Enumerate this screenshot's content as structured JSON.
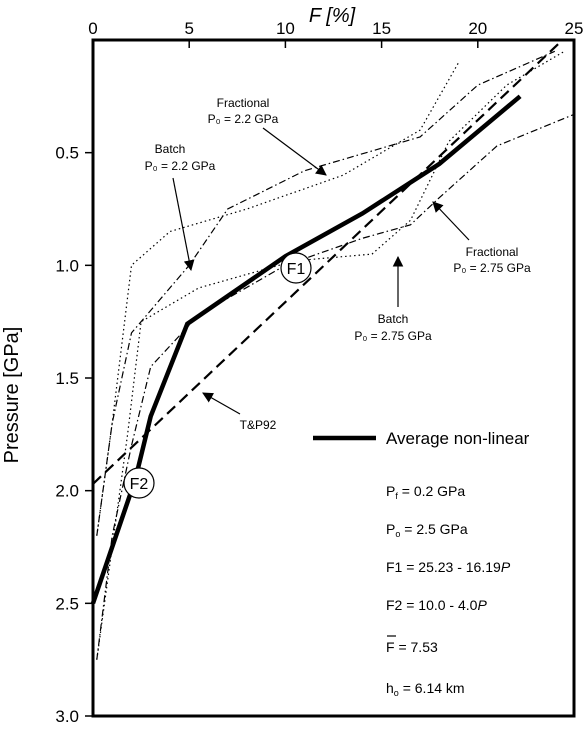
{
  "chart_data": {
    "type": "line",
    "title": "",
    "xlabel": "F [%]",
    "ylabel": "Pressure [GPa]",
    "x_axis_position": "top",
    "y_axis_inverted": true,
    "xlim": [
      0,
      25
    ],
    "ylim": [
      0,
      3.0
    ],
    "x_ticks": [
      "0",
      "5",
      "10",
      "15",
      "20",
      "25"
    ],
    "y_ticks": [
      "0.5",
      "1.0",
      "1.5",
      "2.0",
      "2.5",
      "3.0"
    ],
    "grid": false,
    "series": [
      {
        "name": "Average non-linear",
        "style": "solid-thick",
        "x": [
          0,
          1.0,
          2.2,
          3.0,
          4.9,
          10.0,
          14.0,
          18.0,
          22.2
        ],
        "y": [
          2.5,
          2.25,
          1.95,
          1.67,
          1.26,
          0.96,
          0.77,
          0.55,
          0.25
        ]
      },
      {
        "name": "T&P92",
        "style": "dashed",
        "x": [
          0,
          24.4
        ],
        "y": [
          1.97,
          0.0
        ]
      },
      {
        "name": "Fractional P₀ = 2.2 GPa",
        "style": "dotted",
        "x": [
          0.2,
          1.0,
          2.0,
          4.0,
          8.0,
          13.0,
          17.0,
          19.0
        ],
        "y": [
          2.2,
          1.7,
          1.0,
          0.85,
          0.75,
          0.6,
          0.4,
          0.1
        ]
      },
      {
        "name": "Batch P₀ = 2.2 GPa",
        "style": "dashdot",
        "x": [
          0.2,
          1.0,
          2.0,
          5.0,
          7.0,
          11.0,
          17.0,
          20.0,
          24.0
        ],
        "y": [
          2.2,
          1.7,
          1.3,
          1.0,
          0.75,
          0.58,
          0.43,
          0.2,
          0.05
        ]
      },
      {
        "name": "Fractional P₀ = 2.75 GPa",
        "style": "dashdot",
        "x": [
          0.2,
          1.0,
          2.0,
          3.0,
          5.5,
          10.0,
          14.0,
          16.5,
          18.0,
          21.0,
          25.0
        ],
        "y": [
          2.75,
          2.2,
          1.8,
          1.45,
          1.22,
          1.0,
          0.88,
          0.82,
          0.7,
          0.47,
          0.33
        ]
      },
      {
        "name": "Batch P₀ = 2.75 GPa",
        "style": "dotted",
        "x": [
          0.2,
          1.0,
          1.8,
          2.5,
          5.5,
          10.5,
          14.5,
          16.5,
          18.5,
          21.5,
          24.5
        ],
        "y": [
          2.75,
          2.25,
          1.75,
          1.25,
          1.1,
          0.98,
          0.95,
          0.8,
          0.45,
          0.2,
          0.05
        ]
      }
    ],
    "markers": [
      {
        "label": "F1",
        "x": 10.5,
        "y": 0.93
      },
      {
        "label": "F2",
        "x": 2.3,
        "y": 1.92
      }
    ],
    "annotations": [
      {
        "lines": [
          "Fractional",
          "P₀ = 2.2 GPa"
        ],
        "anchor": "top-center"
      },
      {
        "lines": [
          "Batch",
          "P₀ = 2.2 GPa"
        ],
        "anchor": "upper-left"
      },
      {
        "lines": [
          "Fractional",
          "P₀ = 2.75 GPa"
        ],
        "anchor": "right"
      },
      {
        "lines": [
          "Batch",
          "P₀ = 2.75 GPa"
        ],
        "anchor": "middle-right"
      },
      {
        "lines": [
          "T&P92"
        ],
        "anchor": "middle-left"
      }
    ],
    "legend": {
      "placement": "lower-right",
      "entries": [
        {
          "label": "Average non-linear",
          "style": "solid-thick"
        }
      ]
    },
    "stats": {
      "pf": "P",
      "pf_sub": "f",
      "pf_val": " = 0.2 GPa",
      "po": "P",
      "po_sub": "o",
      "po_val": " = 2.5 GPa",
      "f1_text": "F1 = 25.23 - 16.19",
      "f1_var": "P",
      "f2_text": "F2 = 10.0 - 4.0",
      "f2_var": "P",
      "fbar_symbol": "F",
      "fbar_val": " = 7.53",
      "ho": "h",
      "ho_sub": "o",
      "ho_val": " = 6.14 km"
    }
  }
}
